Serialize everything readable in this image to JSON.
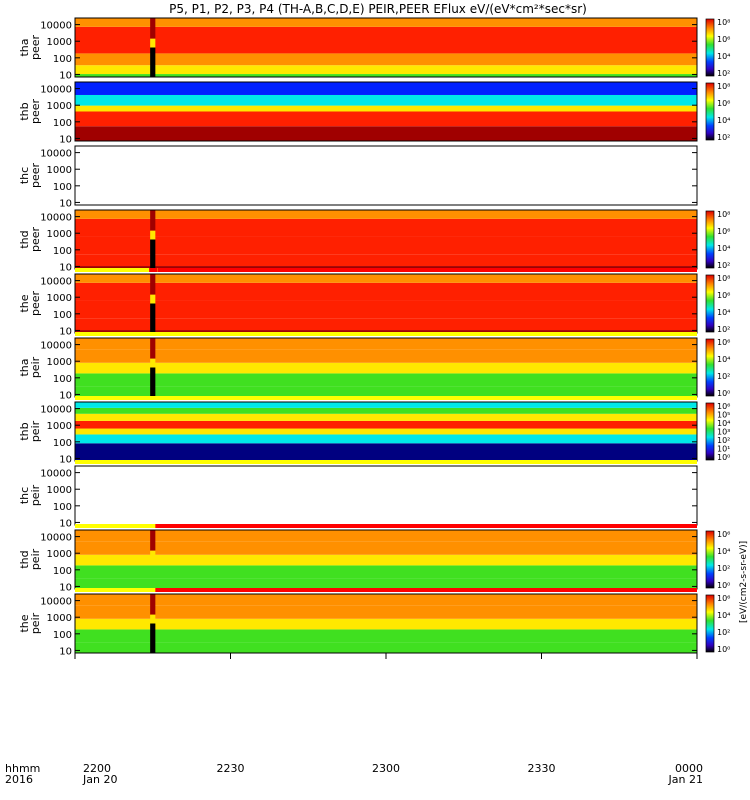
{
  "chart_data": {
    "type": "heatmap",
    "title": "P5, P1, P2, P3, P4 (TH-A,B,C,D,E) PEIR,PEER EFlux eV/(eV*cm²*sec*sr)",
    "x_axis": {
      "row1_label": "hhmm",
      "row2_label": "2016",
      "ticks": [
        {
          "time": "2200",
          "date": "Jan 20"
        },
        {
          "time": "2230",
          "date": ""
        },
        {
          "time": "2300",
          "date": ""
        },
        {
          "time": "2330",
          "date": ""
        },
        {
          "time": "0000",
          "date": "Jan 21"
        }
      ],
      "range_minutes": [
        0,
        120
      ]
    },
    "y_axis": {
      "scale": "log",
      "range_eV": [
        7,
        25000
      ],
      "ticks": [
        "10",
        "100",
        "1000",
        "10000"
      ]
    },
    "colorbar_ticks": {
      "peer": [
        "10²",
        "10⁴",
        "10⁶",
        "10⁸"
      ],
      "peir": [
        "10⁰",
        "10²",
        "10⁴",
        "10⁶"
      ],
      "thb_peir": [
        "10⁰",
        "10¹",
        "10²",
        "10³",
        "10⁴",
        "10⁵",
        "10⁶"
      ]
    },
    "colorbar_units": "[eV/(cm2-s-sr-eV)]",
    "panels": [
      {
        "probe": "tha",
        "product": "peer",
        "data": true,
        "gap_at_min": [
          14.5,
          15.5
        ],
        "gap_low": true,
        "level": "high",
        "flag": false
      },
      {
        "probe": "thb",
        "product": "peer",
        "data": true,
        "gap_at_min": null,
        "gap_low": false,
        "level": "banded",
        "flag": false
      },
      {
        "probe": "thc",
        "product": "peer",
        "data": false,
        "gap_at_min": null,
        "gap_low": false,
        "level": "none",
        "flag": false
      },
      {
        "probe": "thd",
        "product": "peer",
        "data": true,
        "gap_at_min": [
          14.5,
          15.5
        ],
        "gap_low": true,
        "level": "high",
        "flag": false
      },
      {
        "probe": "the",
        "product": "peer",
        "data": true,
        "gap_at_min": [
          14.5,
          15.5
        ],
        "gap_low": true,
        "level": "high",
        "flag": true
      },
      {
        "probe": "tha",
        "product": "peir",
        "data": true,
        "gap_at_min": [
          14.5,
          15.5
        ],
        "gap_low": true,
        "level": "mid",
        "flag": true
      },
      {
        "probe": "thb",
        "product": "peir",
        "data": true,
        "gap_at_min": null,
        "gap_low": false,
        "level": "banded",
        "flag": true
      },
      {
        "probe": "thc",
        "product": "peir",
        "data": false,
        "gap_at_min": null,
        "gap_low": false,
        "level": "none",
        "flag": true
      },
      {
        "probe": "thd",
        "product": "peir",
        "data": true,
        "gap_at_min": [
          14.5,
          15.5
        ],
        "gap_low": false,
        "level": "mid",
        "flag": true
      },
      {
        "probe": "the",
        "product": "peir",
        "data": true,
        "gap_at_min": [
          14.5,
          15.5
        ],
        "gap_low": true,
        "level": "mid",
        "flag": true
      }
    ],
    "colors": {
      "dark_red": "#a00000",
      "red": "#ff2000",
      "orange": "#ff9000",
      "yellow": "#ffe800",
      "green": "#40e020",
      "cyan": "#00e8e8",
      "blue": "#0020ff",
      "navy": "#000080",
      "flag_yellow": "#ffff00",
      "flag_red": "#ff0000"
    }
  }
}
